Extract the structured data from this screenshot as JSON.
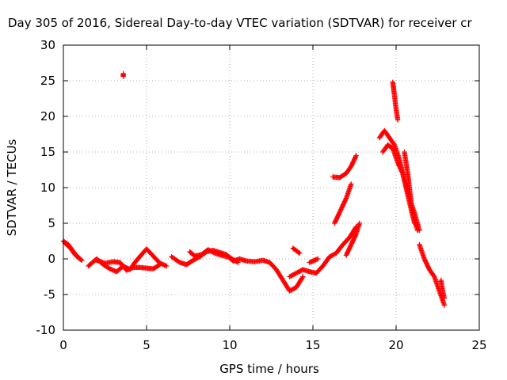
{
  "chart_data": {
    "type": "scatter",
    "title": "Day 305 of 2016, Sidereal Day-to-day VTEC variation (SDTVAR) for receiver cr",
    "xlabel": "GPS time / hours",
    "ylabel": "SDTVAR / TECUs",
    "xlim": [
      0,
      25
    ],
    "ylim": [
      -10,
      30
    ],
    "xticks": [
      "0",
      "5",
      "10",
      "15",
      "20",
      "25"
    ],
    "yticks": [
      "-10",
      "-5",
      "0",
      "5",
      "10",
      "15",
      "20",
      "25",
      "30"
    ],
    "grid": true,
    "marker": "plus",
    "marker_color": "#ff0000",
    "segments": [
      [
        [
          0.0,
          2.5
        ],
        [
          0.3,
          2.0
        ],
        [
          0.6,
          1.0
        ],
        [
          0.9,
          0.2
        ],
        [
          1.1,
          -0.2
        ]
      ],
      [
        [
          0.1,
          2.2
        ],
        [
          0.4,
          1.6
        ],
        [
          0.7,
          0.6
        ],
        [
          1.0,
          0.0
        ]
      ],
      [
        [
          1.5,
          -1.0
        ],
        [
          2.0,
          0.0
        ],
        [
          2.4,
          -0.8
        ],
        [
          2.8,
          -1.4
        ],
        [
          3.2,
          -1.8
        ],
        [
          3.6,
          -1.0
        ],
        [
          4.0,
          -1.5
        ],
        [
          4.3,
          -0.5
        ],
        [
          4.7,
          0.6
        ],
        [
          5.0,
          1.4
        ],
        [
          5.4,
          0.4
        ],
        [
          5.8,
          -0.6
        ],
        [
          6.2,
          -1.0
        ]
      ],
      [
        [
          2.0,
          -0.2
        ],
        [
          2.5,
          -0.6
        ],
        [
          3.0,
          -0.4
        ],
        [
          3.4,
          -0.5
        ],
        [
          3.8,
          -1.6
        ],
        [
          4.2,
          -1.2
        ],
        [
          4.6,
          -1.2
        ],
        [
          5.0,
          -1.3
        ],
        [
          5.4,
          -1.4
        ],
        [
          5.8,
          -0.8
        ]
      ],
      [
        [
          3.6,
          26.0
        ],
        [
          3.6,
          25.6
        ]
      ],
      [
        [
          6.5,
          0.3
        ],
        [
          7.0,
          -0.5
        ],
        [
          7.4,
          -0.8
        ],
        [
          7.8,
          -0.2
        ],
        [
          8.2,
          0.3
        ],
        [
          8.6,
          1.0
        ],
        [
          9.0,
          1.2
        ],
        [
          9.4,
          0.9
        ],
        [
          9.8,
          0.6
        ],
        [
          10.2,
          -0.3
        ],
        [
          10.6,
          0.0
        ],
        [
          11.0,
          -0.3
        ],
        [
          11.5,
          -0.4
        ],
        [
          12.0,
          -0.2
        ],
        [
          12.4,
          -0.5
        ],
        [
          12.8,
          -1.5
        ],
        [
          13.2,
          -3.0
        ],
        [
          13.6,
          -4.5
        ],
        [
          14.0,
          -4.0
        ],
        [
          14.4,
          -2.5
        ]
      ],
      [
        [
          7.6,
          1.0
        ],
        [
          7.9,
          0.4
        ],
        [
          8.3,
          0.6
        ],
        [
          8.7,
          1.3
        ],
        [
          9.1,
          0.8
        ],
        [
          9.5,
          0.5
        ],
        [
          10.0,
          0.2
        ],
        [
          10.5,
          -0.5
        ]
      ],
      [
        [
          13.6,
          -2.5
        ],
        [
          14.0,
          -2.0
        ],
        [
          14.4,
          -1.5
        ],
        [
          14.8,
          -1.8
        ],
        [
          15.2,
          -2.0
        ],
        [
          15.6,
          -1.0
        ],
        [
          16.0,
          0.3
        ],
        [
          16.4,
          0.8
        ],
        [
          16.8,
          2.0
        ],
        [
          17.2,
          3.0
        ],
        [
          17.6,
          4.5
        ]
      ],
      [
        [
          13.8,
          1.5
        ],
        [
          14.2,
          0.8
        ]
      ],
      [
        [
          14.8,
          -0.5
        ],
        [
          15.3,
          0.0
        ]
      ],
      [
        [
          16.2,
          11.5
        ],
        [
          16.6,
          11.4
        ],
        [
          17.0,
          12.0
        ],
        [
          17.3,
          13.0
        ],
        [
          17.6,
          14.5
        ]
      ],
      [
        [
          16.3,
          5.0
        ],
        [
          16.6,
          6.5
        ],
        [
          17.0,
          8.5
        ],
        [
          17.3,
          10.5
        ]
      ],
      [
        [
          17.0,
          0.5
        ],
        [
          17.3,
          2.0
        ],
        [
          17.6,
          3.5
        ],
        [
          17.8,
          5.0
        ]
      ],
      [
        [
          19.0,
          17.0
        ],
        [
          19.3,
          18.0
        ],
        [
          19.6,
          17.0
        ],
        [
          19.9,
          16.0
        ],
        [
          20.2,
          14.0
        ],
        [
          20.5,
          11.0
        ],
        [
          20.8,
          8.5
        ],
        [
          21.1,
          6.5
        ],
        [
          21.4,
          4.0
        ]
      ],
      [
        [
          19.2,
          15.0
        ],
        [
          19.5,
          16.0
        ],
        [
          19.8,
          15.5
        ],
        [
          20.1,
          13.5
        ],
        [
          20.4,
          12.0
        ],
        [
          20.7,
          9.0
        ],
        [
          21.0,
          6.0
        ],
        [
          21.3,
          4.0
        ]
      ],
      [
        [
          19.8,
          24.8
        ],
        [
          19.9,
          23.0
        ],
        [
          20.0,
          21.0
        ],
        [
          20.1,
          19.5
        ]
      ],
      [
        [
          20.5,
          15.0
        ],
        [
          20.7,
          12.0
        ],
        [
          20.9,
          8.0
        ],
        [
          21.1,
          5.0
        ]
      ],
      [
        [
          21.4,
          2.0
        ],
        [
          21.7,
          0.0
        ],
        [
          22.0,
          -1.5
        ],
        [
          22.3,
          -2.5
        ],
        [
          22.6,
          -4.5
        ],
        [
          22.9,
          -6.5
        ]
      ],
      [
        [
          22.7,
          -3.0
        ],
        [
          22.8,
          -4.5
        ],
        [
          22.9,
          -5.5
        ]
      ]
    ]
  }
}
